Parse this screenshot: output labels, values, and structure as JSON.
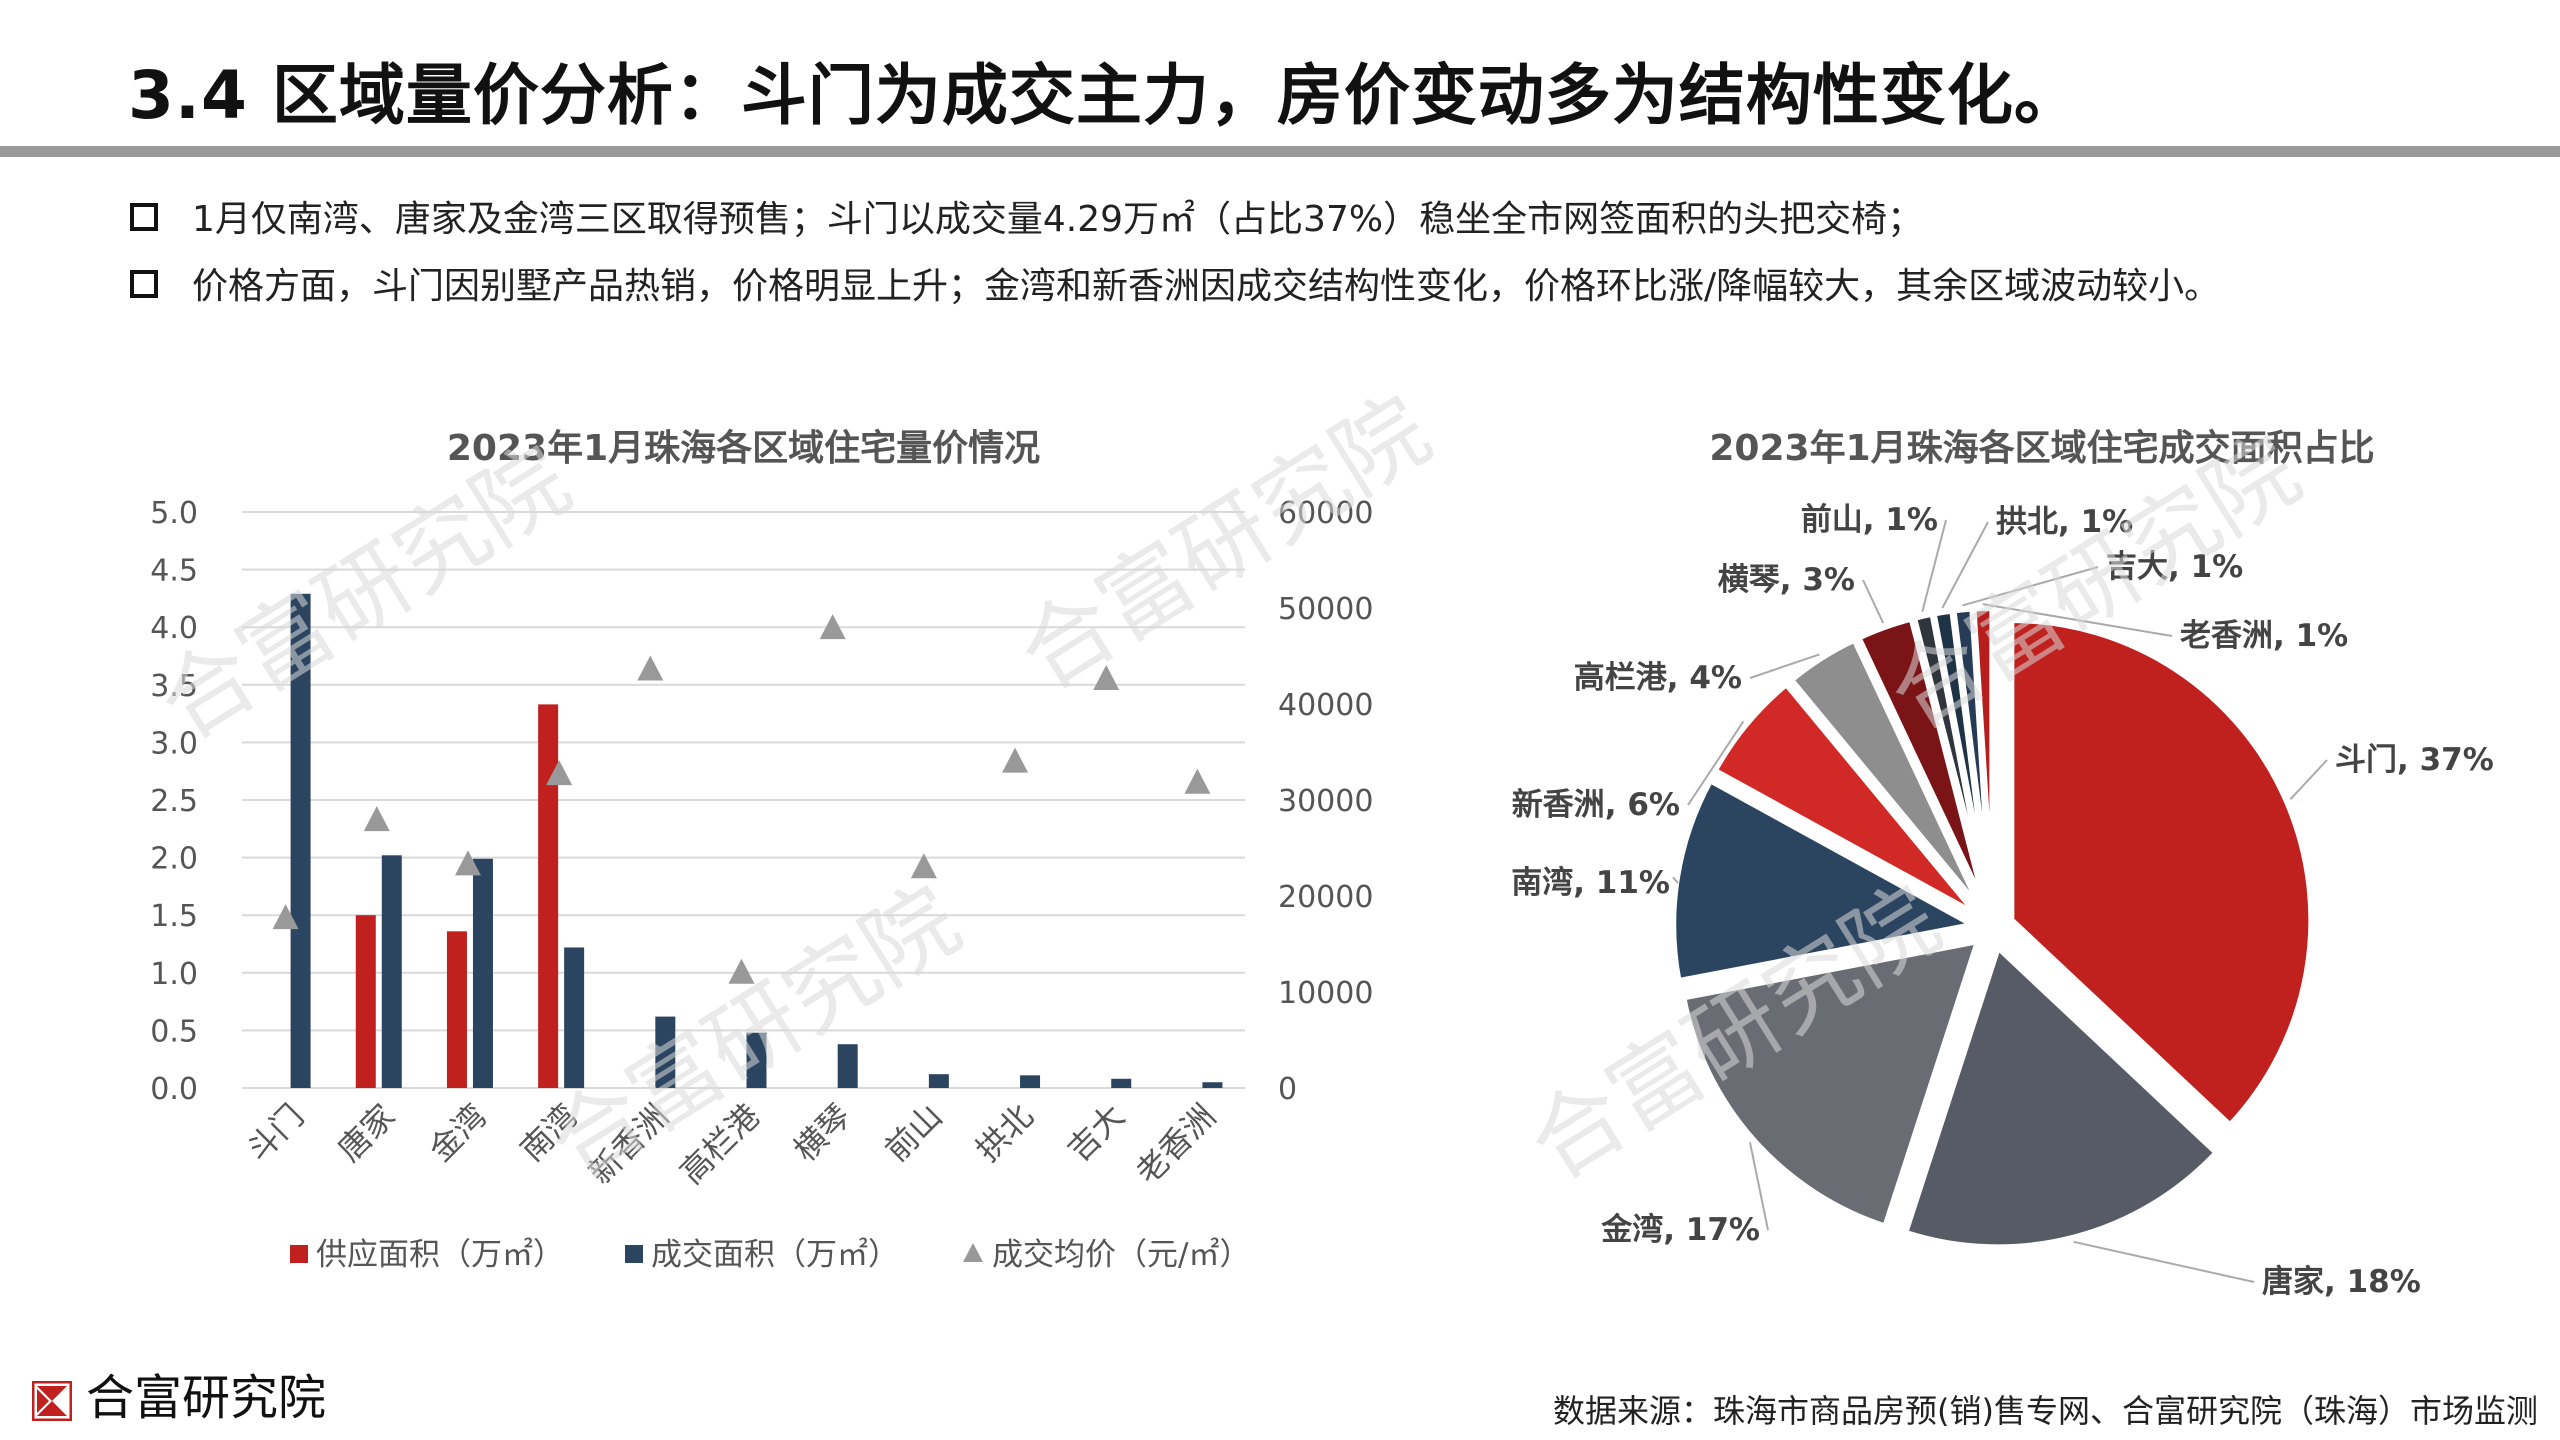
{
  "header": {
    "title": "3.4 区域量价分析：斗门为成交主力，房价变动多为结构性变化。"
  },
  "bullets": [
    "1月仅南湾、唐家及金湾三区取得预售；斗门以成交量4.29万㎡（占比37%）稳坐全市网签面积的头把交椅；",
    "价格方面，斗门因别墅产品热销，价格明显上升；金湾和新香洲因成交结构性变化，价格环比涨/降幅较大，其余区域波动较小。"
  ],
  "watermark": "合富研究院",
  "footer": {
    "logo_text": "合富研究院",
    "source": "数据来源：珠海市商品房预(销)售专网、合富研究院（珠海）市场监测"
  },
  "colors": {
    "supply": "#c0201e",
    "deal": "#2b4560",
    "price": "#999999"
  },
  "chart_data": [
    {
      "type": "bar",
      "title": "2023年1月珠海各区域住宅量价情况",
      "categories": [
        "斗门",
        "唐家",
        "金湾",
        "南湾",
        "新香洲",
        "高栏港",
        "横琴",
        "前山",
        "拱北",
        "吉大",
        "老香洲"
      ],
      "series": [
        {
          "name": "供应面积（万㎡）",
          "kind": "bar",
          "axis": "left",
          "color": "#c0201e",
          "values": [
            0,
            1.5,
            1.36,
            3.33,
            0,
            0,
            0,
            0,
            0,
            0,
            0
          ]
        },
        {
          "name": "成交面积（万㎡）",
          "kind": "bar",
          "axis": "left",
          "color": "#2b4560",
          "values": [
            4.29,
            2.02,
            1.99,
            1.22,
            0.62,
            0.48,
            0.38,
            0.12,
            0.11,
            0.08,
            0.05
          ]
        },
        {
          "name": "成交均价（元/㎡）",
          "kind": "marker",
          "axis": "right",
          "color": "#999999",
          "values": [
            17700,
            27900,
            23300,
            32700,
            43600,
            12000,
            47900,
            23000,
            34000,
            42600,
            31800
          ]
        }
      ],
      "y_left": {
        "min": 0,
        "max": 5,
        "ticks": [
          "0.0",
          "0.5",
          "1.0",
          "1.5",
          "2.0",
          "2.5",
          "3.0",
          "3.5",
          "4.0",
          "4.5",
          "5.0"
        ]
      },
      "y_right": {
        "min": 0,
        "max": 60000,
        "ticks": [
          "0",
          "10000",
          "20000",
          "30000",
          "40000",
          "50000",
          "60000"
        ]
      },
      "grid": true,
      "legend": "bottom"
    },
    {
      "type": "pie",
      "title": "2023年1月珠海各区域住宅成交面积占比",
      "slices": [
        {
          "label": "斗门",
          "value": 37,
          "text": "斗门, 37%",
          "color": "#c0201e"
        },
        {
          "label": "唐家",
          "value": 18,
          "text": "唐家, 18%",
          "color": "#565b66"
        },
        {
          "label": "金湾",
          "value": 17,
          "text": "金湾, 17%",
          "color": "#6a6c74"
        },
        {
          "label": "南湾",
          "value": 11,
          "text": "南湾, 11%",
          "color": "#2b4560"
        },
        {
          "label": "新香洲",
          "value": 6,
          "text": "新香洲, 6%",
          "color": "#d12a26"
        },
        {
          "label": "高栏港",
          "value": 4,
          "text": "高栏港, 4%",
          "color": "#8e8e8e"
        },
        {
          "label": "横琴",
          "value": 3,
          "text": "横琴, 3%",
          "color": "#7a1416"
        },
        {
          "label": "前山",
          "value": 1,
          "text": "前山, 1%",
          "color": "#30343c"
        },
        {
          "label": "拱北",
          "value": 1,
          "text": "拱北, 1%",
          "color": "#1f3347"
        },
        {
          "label": "吉大",
          "value": 1,
          "text": "吉大, 1%",
          "color": "#263b55"
        },
        {
          "label": "老香洲",
          "value": 1,
          "text": "老香洲, 1%",
          "color": "#b51e1d"
        }
      ]
    }
  ]
}
